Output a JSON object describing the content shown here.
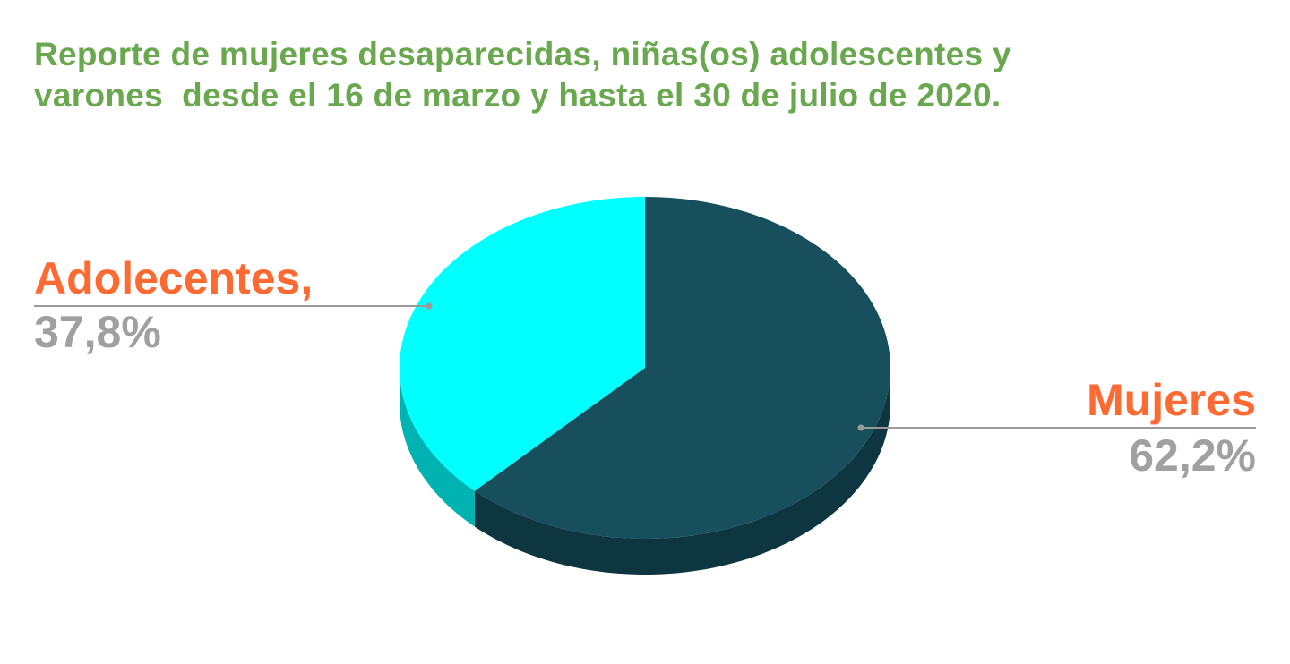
{
  "chart_data": {
    "type": "pie",
    "title_lines": [
      "Reporte de mujeres desaparecidas, niñas(os) adolescentes y",
      "varones  desde el 16 de marzo y hasta el 30 de julio de 2020."
    ],
    "slices": [
      {
        "label": "Mujeres",
        "value": 62.2,
        "value_text": "62,2%",
        "color": "#174f5c",
        "side_color": "#0d3640"
      },
      {
        "label": "Adolecentes,",
        "value": 37.8,
        "value_text": "37,8%",
        "color": "#00ffff",
        "side_color": "#00b3b3"
      }
    ],
    "style": "3d",
    "legend": "none",
    "colors": {
      "title": "#6aa84f",
      "label_name": "#ff6a33",
      "label_value": "#a0a0a0",
      "leader_line": "#9a9a9a"
    }
  }
}
